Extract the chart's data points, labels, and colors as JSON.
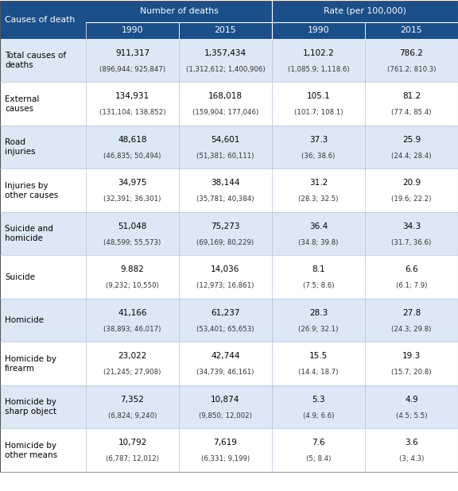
{
  "header_bg": "#1b4f8a",
  "header_text_color": "#ffffff",
  "alt_row_bg": "#dce8f5",
  "white_row_bg": "#ffffff",
  "col_header1": "Number of deaths",
  "col_header2": "Rate (per 100,000)",
  "col1_label": "Causes of death",
  "sub_col_headers": [
    "1990",
    "2015",
    "1990",
    "2015"
  ],
  "rows": [
    {
      "label": "Total causes of\ndeaths",
      "values": [
        "911,317",
        "1,357,434",
        "1,102.2",
        "786.2"
      ],
      "ci": [
        "(896,944; 925,847)",
        "(1,312,612; 1,400,906)",
        "(1,085.9; 1,118.6)",
        "(761.2; 810.3)"
      ]
    },
    {
      "label": "External\ncauses",
      "values": [
        "134,931",
        "168,018",
        "105.1",
        "81.2"
      ],
      "ci": [
        "(131,104; 138,852)",
        "(159,904; 177,046)",
        "(101.7; 108.1)",
        "(77.4; 85.4)"
      ]
    },
    {
      "label": "Road\ninjuries",
      "values": [
        "48,618",
        "54,601",
        "37.3",
        "25.9"
      ],
      "ci": [
        "(46,835; 50,494)",
        "(51,381; 60,111)",
        "(36; 38.6)",
        "(24.4; 28.4)"
      ]
    },
    {
      "label": "Injuries by\nother causes",
      "values": [
        "34,975",
        "38,144",
        "31.2",
        "20.9"
      ],
      "ci": [
        "(32,391; 36,301)",
        "(35,781; 40,384)",
        "(28.3; 32.5)",
        "(19.6; 22.2)"
      ]
    },
    {
      "label": "Suicide and\nhomicide",
      "values": [
        "51,048",
        "75,273",
        "36.4",
        "34.3"
      ],
      "ci": [
        "(48,599; 55,573)",
        "(69,169; 80,229)",
        "(34.8; 39.8)",
        "(31.7, 36.6)"
      ]
    },
    {
      "label": "Suicide",
      "values": [
        "9.882",
        "14,036",
        "8.1",
        "6.6"
      ],
      "ci": [
        "(9,232; 10,550)",
        "(12,973; 16,861)",
        "(7.5; 8.6)",
        "(6.1; 7.9)"
      ]
    },
    {
      "label": "Homicide",
      "values": [
        "41,166",
        "61,237",
        "28.3",
        "27.8"
      ],
      "ci": [
        "(38,893; 46,017)",
        "(53,401; 65,653)",
        "(26.9; 32.1)",
        "(24.3; 29.8)"
      ]
    },
    {
      "label": "Homicide by\nfirearm",
      "values": [
        "23,022",
        "42,744",
        "15.5",
        "19.3"
      ],
      "ci": [
        "(21,245; 27,908)",
        "(34,739; 46,161)",
        "(14.4; 18.7)",
        "(15.7; 20.8)"
      ]
    },
    {
      "label": "Homicide by\nsharp object",
      "values": [
        "7,352",
        "10,874",
        "5.3",
        "4.9"
      ],
      "ci": [
        "(6,824; 9,240)",
        "(9,850; 12,002)",
        "(4.9; 6.6)",
        "(4.5; 5.5)"
      ]
    },
    {
      "label": "Homicide by\nother means",
      "values": [
        "10,792",
        "7,619",
        "7.6",
        "3.6"
      ],
      "ci": [
        "(6,787; 12,012)",
        "(6,331; 9,199)",
        "(5; 8.4)",
        "(3; 4.3)"
      ]
    }
  ],
  "figwidth": 5.76,
  "figheight": 6.18,
  "dpi": 100
}
